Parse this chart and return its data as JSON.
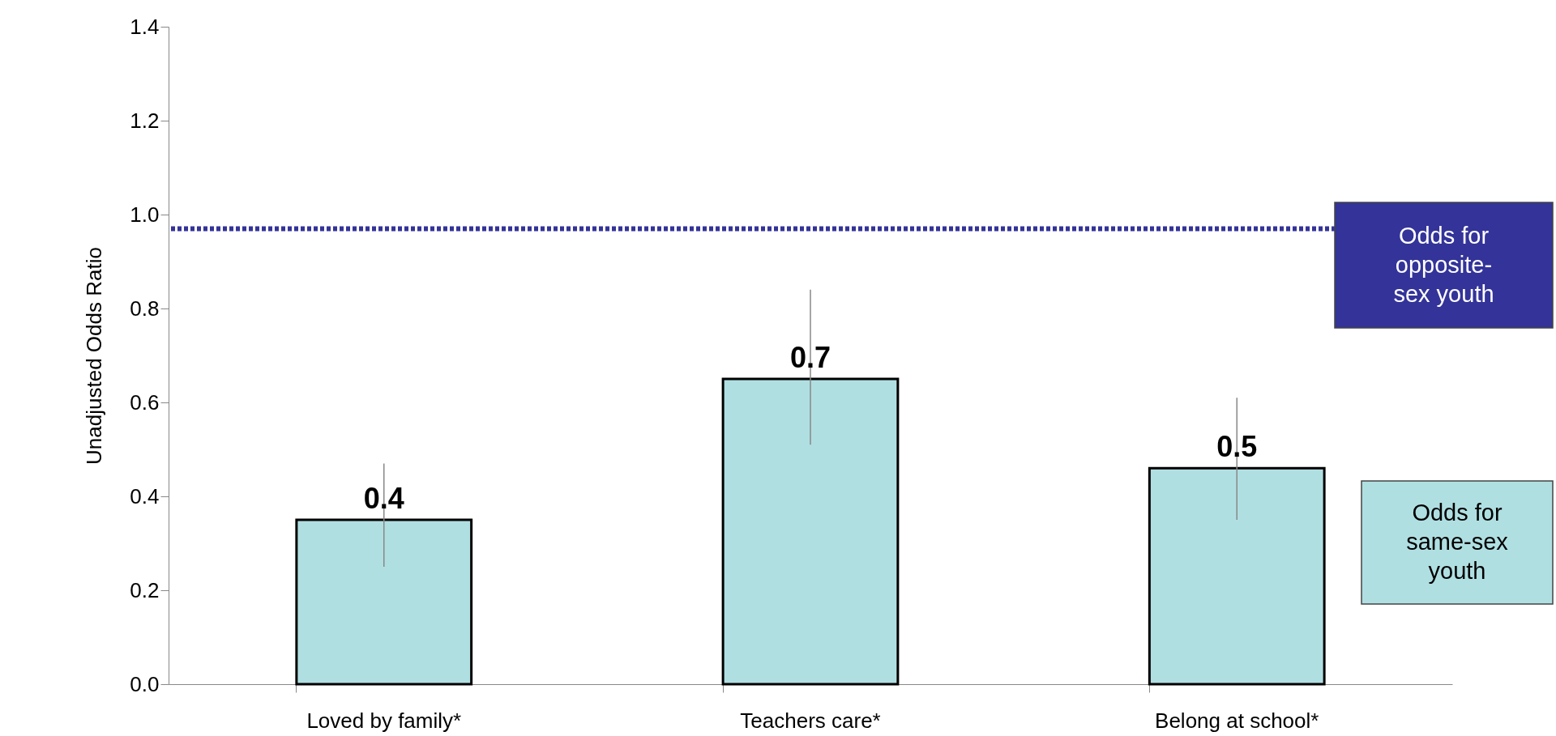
{
  "chart_data": {
    "type": "bar",
    "ylabel": "Unadjusted Odds Ratio",
    "categories": [
      "Loved by family*",
      "Teachers care*",
      "Belong at school*"
    ],
    "series": [
      {
        "color": "#b0dfe2",
        "values": [
          0.35,
          0.65,
          0.46
        ],
        "value_labels": [
          "0.4",
          "0.7",
          "0.5"
        ],
        "errors": [
          [
            0.25,
            0.47
          ],
          [
            0.51,
            0.84
          ],
          [
            0.35,
            0.61
          ]
        ]
      }
    ],
    "ylim": [
      0,
      1.4
    ],
    "yticks": [
      {
        "value": 0,
        "label": "0.0"
      },
      {
        "value": 0.2,
        "label": "0.2"
      },
      {
        "value": 0.4,
        "label": "0.4"
      },
      {
        "value": 0.6,
        "label": "0.6"
      },
      {
        "value": 0.8,
        "label": "0.8"
      },
      {
        "value": 1,
        "label": "1.0"
      },
      {
        "value": 1.2,
        "label": "1.2"
      },
      {
        "value": 1.4,
        "label": "1.4"
      }
    ],
    "ref_lines": [
      {
        "axis": "y",
        "value": 0.97,
        "label": "Odds for opposite-sex youth",
        "color": "#333399",
        "line_style": "dotted"
      }
    ],
    "annotations": [
      "Odds for same-sex youth"
    ],
    "grid": false
  }
}
